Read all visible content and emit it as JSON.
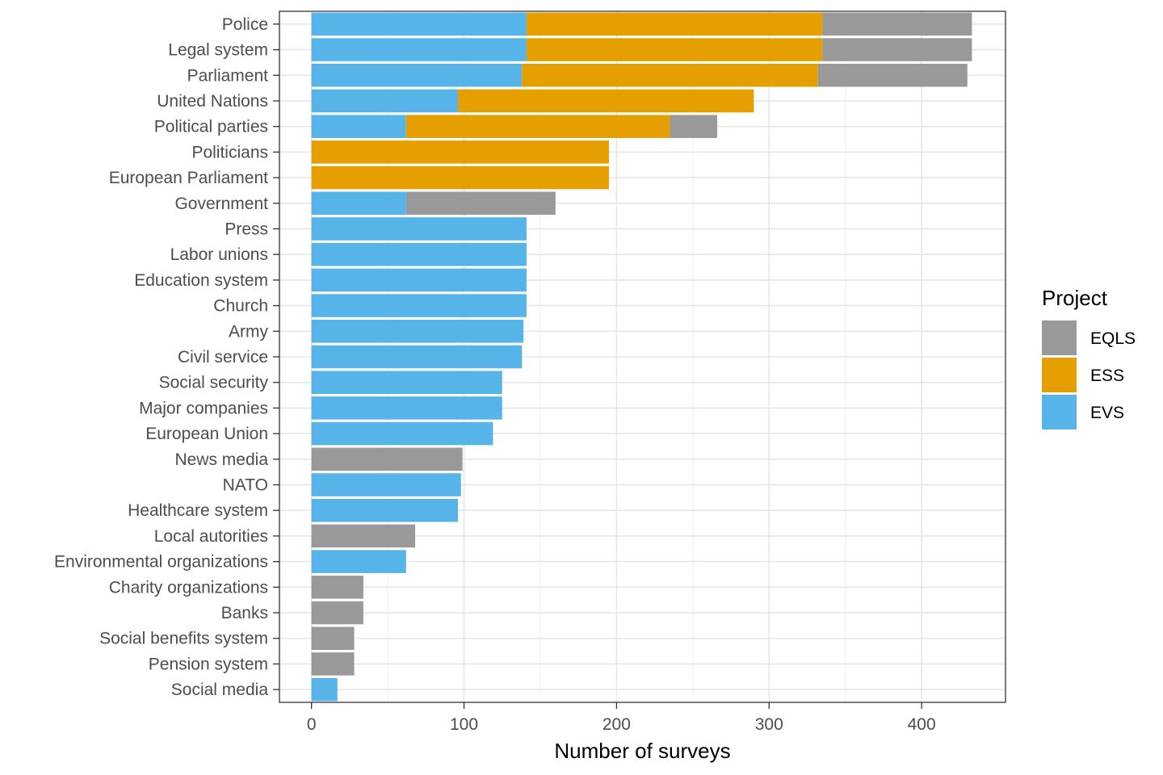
{
  "chart_data": {
    "type": "bar",
    "orientation": "horizontal",
    "stacked": true,
    "xlabel": "Number of surveys",
    "ylabel": "",
    "xlim": [
      -21,
      455
    ],
    "xticks": [
      0,
      100,
      200,
      300,
      400
    ],
    "grid": true,
    "legend": {
      "title": "Project",
      "position": "right",
      "entries": [
        "EQLS",
        "ESS",
        "EVS"
      ]
    },
    "categories": [
      "Police",
      "Legal system",
      "Parliament",
      "United Nations",
      "Political parties",
      "Politicians",
      "European Parliament",
      "Government",
      "Press",
      "Labor unions",
      "Education system",
      "Church",
      "Army",
      "Civil service",
      "Social security",
      "Major companies",
      "European Union",
      "News media",
      "NATO",
      "Healthcare system",
      "Local autorities",
      "Environmental organizations",
      "Charity organizations",
      "Banks",
      "Social benefits system",
      "Pension system",
      "Social media"
    ],
    "series": [
      {
        "name": "EVS",
        "color": "#56b4e9",
        "values": [
          141,
          141,
          138,
          96,
          62,
          0,
          0,
          62,
          141,
          141,
          141,
          141,
          139,
          138,
          125,
          125,
          119,
          0,
          98,
          96,
          0,
          62,
          0,
          0,
          0,
          0,
          17
        ]
      },
      {
        "name": "ESS",
        "color": "#e69f00",
        "values": [
          194,
          194,
          194,
          194,
          173,
          195,
          195,
          0,
          0,
          0,
          0,
          0,
          0,
          0,
          0,
          0,
          0,
          0,
          0,
          0,
          0,
          0,
          0,
          0,
          0,
          0,
          0
        ]
      },
      {
        "name": "EQLS",
        "color": "#999999",
        "values": [
          98,
          98,
          98,
          0,
          31,
          0,
          0,
          98,
          0,
          0,
          0,
          0,
          0,
          0,
          0,
          0,
          0,
          99,
          0,
          0,
          68,
          0,
          34,
          34,
          28,
          28,
          0
        ]
      }
    ]
  }
}
